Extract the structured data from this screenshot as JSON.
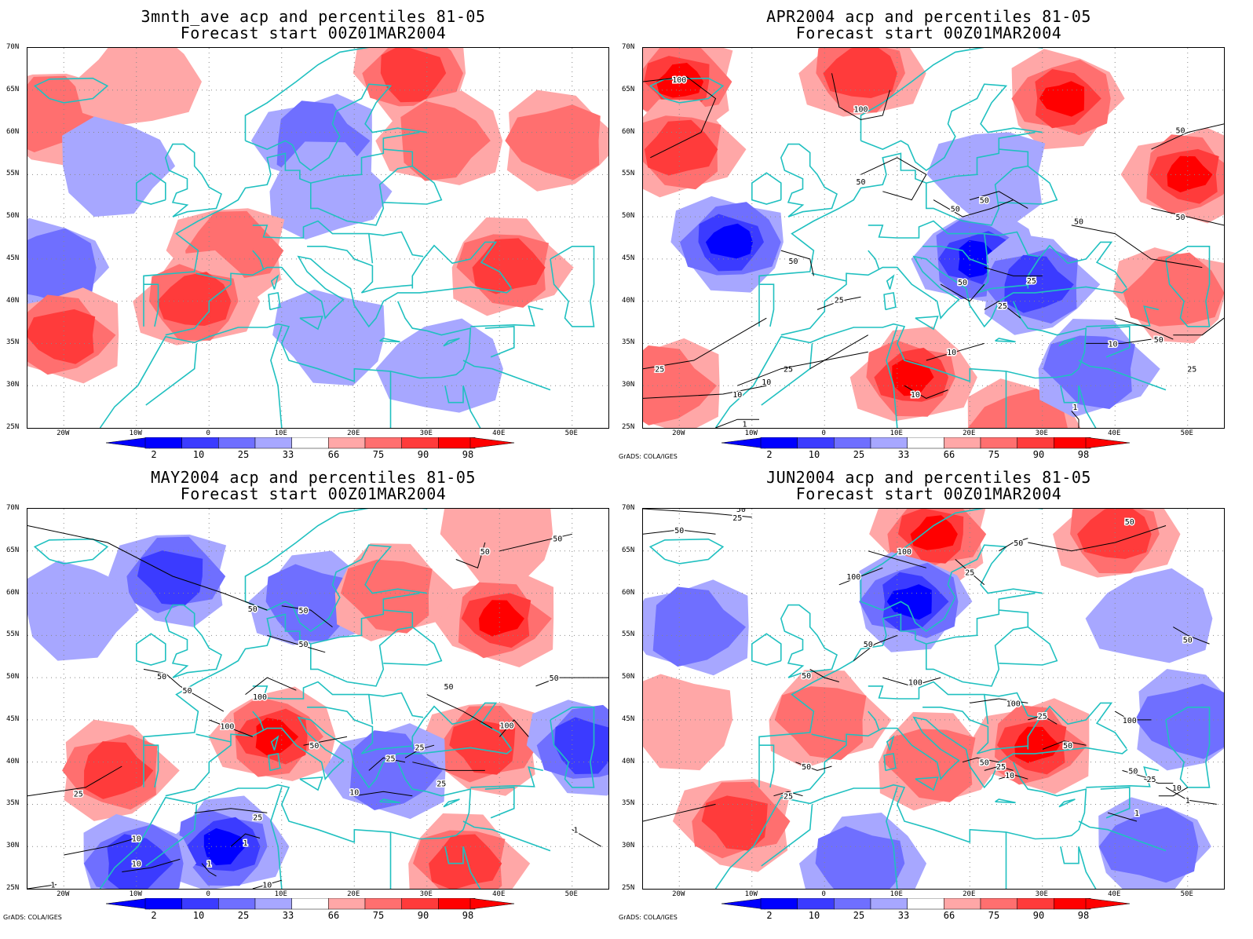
{
  "palette": {
    "below": [
      "#0000ff",
      "#3b3bff",
      "#6f6fff",
      "#a7a7ff"
    ],
    "above": [
      "#ffa7a7",
      "#ff6f6f",
      "#ff3b3b",
      "#ff0000"
    ],
    "coast": "#20c0c0",
    "contour": "#000000"
  },
  "axes": {
    "lat_labels": [
      "70N",
      "65N",
      "60N",
      "55N",
      "50N",
      "45N",
      "40N",
      "35N",
      "30N",
      "25N"
    ],
    "lon_labels": [
      "20W",
      "10W",
      "0",
      "10E",
      "20E",
      "30E",
      "40E",
      "50E"
    ],
    "lat_range": [
      25,
      70
    ],
    "lon_range": [
      -25,
      55
    ]
  },
  "colorbar": {
    "labels": [
      "2",
      "10",
      "25",
      "33",
      "66",
      "75",
      "90",
      "98"
    ]
  },
  "credit": "GrADS: COLA/IGES",
  "panels": [
    {
      "title_line1": "3mnth_ave acp and percentiles 81-05",
      "title_line2": "Forecast start 00Z01MAR2004",
      "contours": [],
      "anomalies": [
        {
          "lon": -22,
          "lat": 62,
          "pct": 75
        },
        {
          "lon": -10,
          "lat": 66,
          "pct": 66
        },
        {
          "lon": -13,
          "lat": 56,
          "pct": 33
        },
        {
          "lon": 15,
          "lat": 59,
          "pct": 25
        },
        {
          "lon": 16,
          "lat": 53,
          "pct": 33
        },
        {
          "lon": 28,
          "lat": 67,
          "pct": 90
        },
        {
          "lon": 32,
          "lat": 59,
          "pct": 75
        },
        {
          "lon": 48,
          "lat": 59,
          "pct": 75
        },
        {
          "lon": 3,
          "lat": 46,
          "pct": 75
        },
        {
          "lon": -2,
          "lat": 40,
          "pct": 90
        },
        {
          "lon": -22,
          "lat": 44,
          "pct": 25
        },
        {
          "lon": -20,
          "lat": 36,
          "pct": 90
        },
        {
          "lon": 41,
          "lat": 44,
          "pct": 90
        },
        {
          "lon": 17,
          "lat": 36,
          "pct": 33
        },
        {
          "lon": 32,
          "lat": 32,
          "pct": 33
        }
      ]
    },
    {
      "title_line1": "APR2004 acp and percentiles 81-05",
      "title_line2": "Forecast start 00Z01MAR2004",
      "contours": [
        "100",
        "100",
        "50",
        "50",
        "50",
        "50",
        "50",
        "50",
        "50",
        "50",
        "50",
        "25",
        "25",
        "25",
        "25",
        "25",
        "25",
        "10",
        "10",
        "10",
        "10",
        "10",
        "1",
        "1"
      ],
      "anomalies": [
        {
          "lon": -20,
          "lat": 66,
          "pct": 98
        },
        {
          "lon": 5,
          "lat": 67,
          "pct": 90
        },
        {
          "lon": 33,
          "lat": 64,
          "pct": 98
        },
        {
          "lon": 50,
          "lat": 55,
          "pct": 98
        },
        {
          "lon": -20,
          "lat": 58,
          "pct": 90
        },
        {
          "lon": -13,
          "lat": 47,
          "pct": 2
        },
        {
          "lon": 21,
          "lat": 45,
          "pct": 2
        },
        {
          "lon": 29,
          "lat": 42,
          "pct": 10
        },
        {
          "lon": 23,
          "lat": 55,
          "pct": 33
        },
        {
          "lon": 12,
          "lat": 31,
          "pct": 98
        },
        {
          "lon": 27,
          "lat": 25,
          "pct": 75
        },
        {
          "lon": -22,
          "lat": 30,
          "pct": 75
        },
        {
          "lon": 37,
          "lat": 32,
          "pct": 25
        },
        {
          "lon": 48,
          "lat": 41,
          "pct": 75
        }
      ]
    },
    {
      "title_line1": "MAY2004 acp and percentiles 81-05",
      "title_line2": "Forecast start 00Z01MAR2004",
      "contours": [
        "50",
        "50",
        "50",
        "50",
        "50",
        "50",
        "50",
        "50",
        "100",
        "100",
        "100",
        "50",
        "25",
        "25",
        "25",
        "25",
        "25",
        "10",
        "10",
        "10",
        "1",
        "1",
        "1",
        "1",
        "10",
        "50"
      ],
      "anomalies": [
        {
          "lon": -5,
          "lat": 62,
          "pct": 10
        },
        {
          "lon": 14,
          "lat": 59,
          "pct": 25
        },
        {
          "lon": -18,
          "lat": 58,
          "pct": 33
        },
        {
          "lon": 40,
          "lat": 57,
          "pct": 98
        },
        {
          "lon": 25,
          "lat": 60,
          "pct": 75
        },
        {
          "lon": 40,
          "lat": 67,
          "pct": 66
        },
        {
          "lon": 9,
          "lat": 43,
          "pct": 98
        },
        {
          "lon": -13,
          "lat": 39,
          "pct": 90
        },
        {
          "lon": 38,
          "lat": 42,
          "pct": 90
        },
        {
          "lon": 2,
          "lat": 30,
          "pct": 2
        },
        {
          "lon": -10,
          "lat": 28,
          "pct": 10
        },
        {
          "lon": 25,
          "lat": 39,
          "pct": 25
        },
        {
          "lon": 35,
          "lat": 28,
          "pct": 90
        },
        {
          "lon": 52,
          "lat": 42,
          "pct": 10
        }
      ]
    },
    {
      "title_line1": "JUN2004 acp and percentiles 81-05",
      "title_line2": "Forecast start 00Z01MAR2004",
      "contours": [
        "25",
        "50",
        "50",
        "100",
        "100",
        "25",
        "50",
        "50",
        "100",
        "50",
        "50",
        "100",
        "25",
        "50",
        "50",
        "50",
        "100",
        "25",
        "50",
        "25",
        "10",
        "50",
        "25",
        "10",
        "1",
        "1"
      ],
      "anomalies": [
        {
          "lon": 15,
          "lat": 67,
          "pct": 98
        },
        {
          "lon": 40,
          "lat": 67,
          "pct": 90
        },
        {
          "lon": 12,
          "lat": 59,
          "pct": 2
        },
        {
          "lon": 29,
          "lat": 42,
          "pct": 98
        },
        {
          "lon": 0,
          "lat": 45,
          "pct": 75
        },
        {
          "lon": -20,
          "lat": 45,
          "pct": 66
        },
        {
          "lon": 45,
          "lat": 57,
          "pct": 33
        },
        {
          "lon": 50,
          "lat": 45,
          "pct": 25
        },
        {
          "lon": -12,
          "lat": 33,
          "pct": 90
        },
        {
          "lon": 5,
          "lat": 28,
          "pct": 25
        },
        {
          "lon": 45,
          "lat": 30,
          "pct": 25
        },
        {
          "lon": -18,
          "lat": 56,
          "pct": 25
        },
        {
          "lon": 15,
          "lat": 40,
          "pct": 75
        }
      ]
    }
  ]
}
